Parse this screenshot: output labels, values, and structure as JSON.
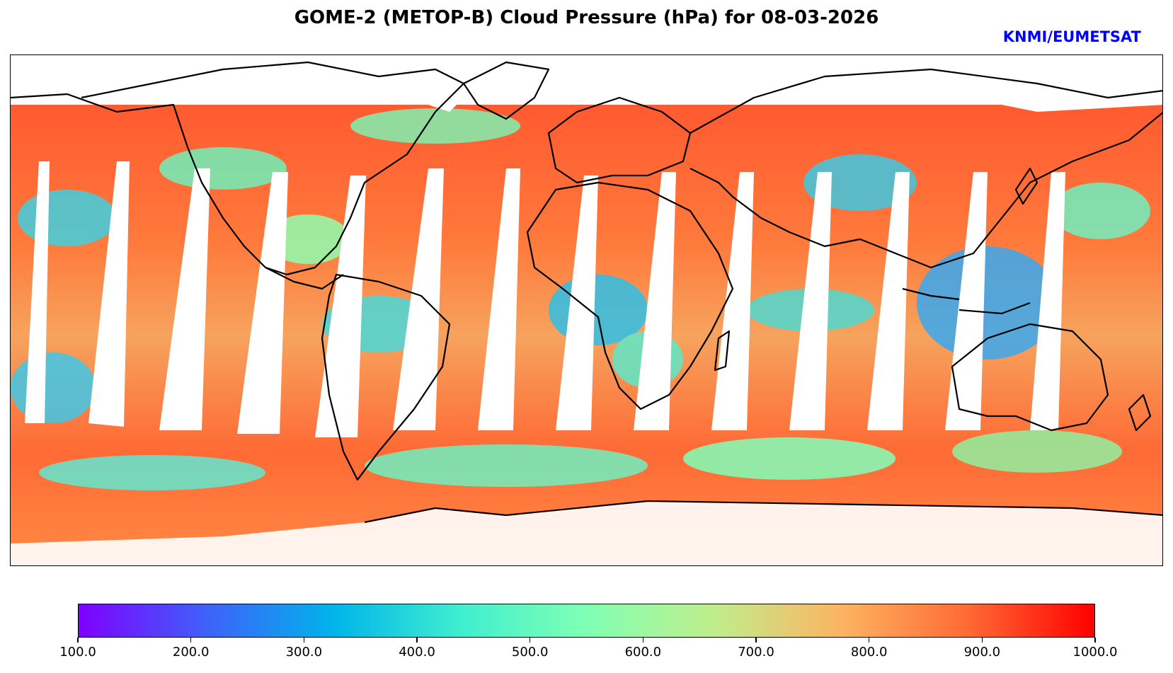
{
  "title": "GOME-2 (METOP-B) Cloud Pressure (hPa) for 08-03-2026",
  "credit": "KNMI/EUMETSAT",
  "colorbar": {
    "ticks": [
      "100.0",
      "200.0",
      "300.0",
      "400.0",
      "500.0",
      "600.0",
      "700.0",
      "800.0",
      "900.0",
      "1000.0"
    ],
    "range": [
      100,
      1000
    ],
    "colormap": "rainbow",
    "colors": [
      "#7f00ff",
      "#3f60f9",
      "#00b4eb",
      "#3feecf",
      "#80ffb4",
      "#c0ee8b",
      "#fdb462",
      "#ff6a35",
      "#ff0000"
    ]
  }
}
